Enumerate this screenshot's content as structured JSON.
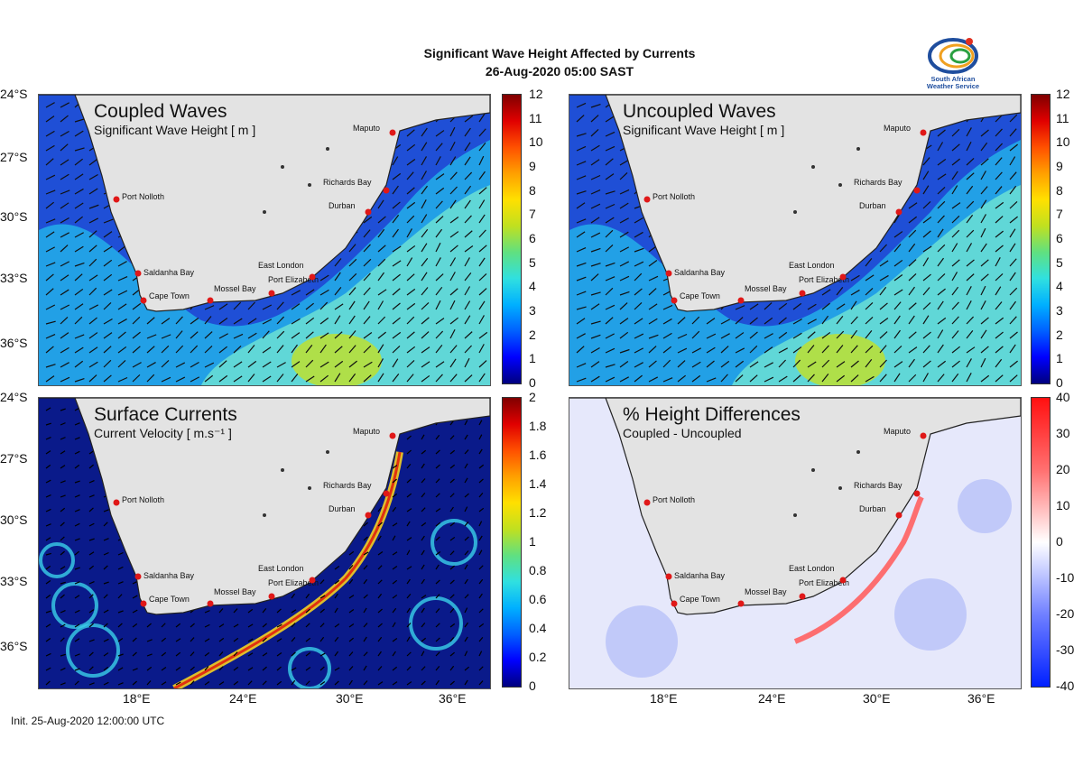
{
  "header": {
    "title_line1": "Significant Wave Height Affected by Currents",
    "title_line2": "26-Aug-2020 05:00 SAST"
  },
  "logo": {
    "name": "saws-logo-icon",
    "text_line1": "South African",
    "text_line2": "Weather Service"
  },
  "panels": [
    {
      "title": "Coupled Waves",
      "subtitle": "Significant Wave Height [ m ]"
    },
    {
      "title": "Uncoupled Waves",
      "subtitle": "Significant Wave Height [ m ]"
    },
    {
      "title": "Surface Currents",
      "subtitle": "Current Velocity [ m.s⁻¹ ]"
    },
    {
      "title": "% Height Differences",
      "subtitle": "Coupled - Uncoupled"
    }
  ],
  "latitudes": [
    "24°S",
    "27°S",
    "30°S",
    "33°S",
    "36°S"
  ],
  "longitudes": [
    "18°E",
    "24°E",
    "30°E",
    "36°E"
  ],
  "colorbars": {
    "wave": [
      "12",
      "11",
      "10",
      "9",
      "8",
      "7",
      "6",
      "5",
      "4",
      "3",
      "2",
      "1",
      "0"
    ],
    "current": [
      "2",
      "1.8",
      "1.6",
      "1.4",
      "1.2",
      "1",
      "0.8",
      "0.6",
      "0.4",
      "0.2",
      "0"
    ],
    "diff": [
      "40",
      "30",
      "20",
      "10",
      "0",
      "-10",
      "-20",
      "-30",
      "-40"
    ]
  },
  "cities": [
    "Maputo",
    "Richards Bay",
    "Durban",
    "Port Nolloth",
    "Saldanha Bay",
    "Cape Town",
    "Mossel Bay",
    "Port Elizabeth",
    "East London"
  ],
  "colors": {
    "land": "#e3e3e3",
    "wave_deep": "#1f4fd6",
    "wave_mid": "#22a8e8",
    "wave_high": "#6be0d4",
    "wave_peak": "#b8e03a",
    "current_bg": "#0a1a8a",
    "diff_bg": "#e6e8fb",
    "city_marker": "#e01818"
  },
  "footer": {
    "init": "Init. 25-Aug-2020 12:00:00 UTC"
  }
}
